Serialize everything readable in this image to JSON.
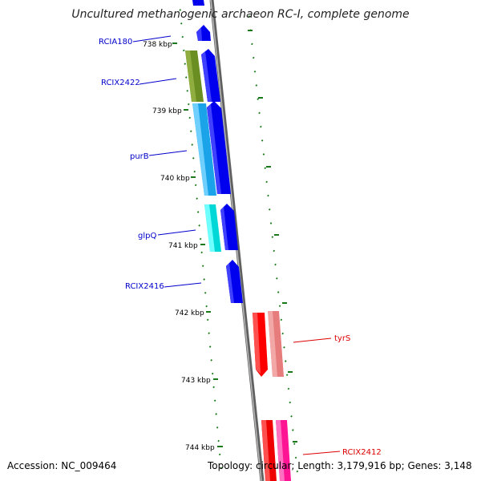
{
  "title": "Uncultured methanogenic archaeon RC-I, complete genome",
  "footer": {
    "accession": "Accession: NC_009464",
    "topology": "Topology: circular; Length: 3,179,916 bp; Genes: 3,148"
  },
  "colors": {
    "backbone": "#808080",
    "tick": "#1a7a1a",
    "forward_gene": "#0000ee",
    "label_blue": "#0000cc",
    "label_red": "#dd0000"
  },
  "kbp_labels": [
    "738 kbp",
    "739 kbp",
    "740 kbp",
    "741 kbp",
    "742 kbp",
    "743 kbp",
    "744 kbp"
  ],
  "gene_labels": [
    "RCIA180",
    "RCIX2422",
    "purB",
    "glpQ",
    "RCIX2416",
    "tyrS",
    "RCIX2412"
  ]
}
